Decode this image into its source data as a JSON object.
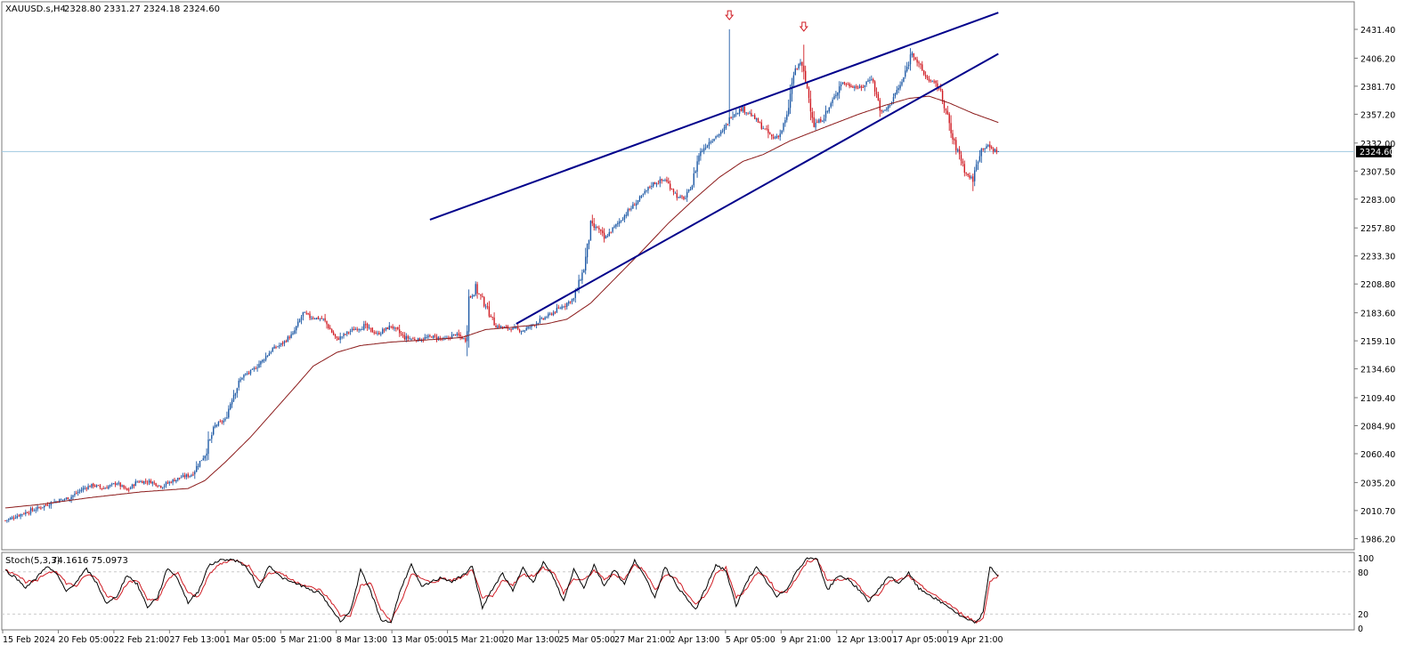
{
  "header": {
    "symbol": "XAUUSD.s,H4",
    "ohlc": "2328.80 2331.27 2324.18 2324.60"
  },
  "price_tag": "2324.60",
  "stoch_header": {
    "name": "Stoch(5,3,3)",
    "values": "74.1616 75.0973"
  },
  "colors": {
    "bull_candle": "#1f5aa6",
    "bear_candle": "#d01c24",
    "moving_average": "#8b1a1a",
    "trendlines": "#00008b",
    "stoch_main": "#000000",
    "stoch_signal": "#d01c24",
    "bid_line": "#9fc8e0",
    "arrows": "#d01c24",
    "grid": "#c8c8c8"
  },
  "chart_data": {
    "type": "candlestick",
    "timeframe": "H4",
    "x_tick_labels": [
      "15 Feb 2024",
      "20 Feb 05:00",
      "22 Feb 21:00",
      "27 Feb 13:00",
      "1 Mar 05:00",
      "5 Mar 21:00",
      "8 Mar 13:00",
      "13 Mar 05:00",
      "15 Mar 21:00",
      "20 Mar 13:00",
      "25 Mar 05:00",
      "27 Mar 21:00",
      "2 Apr 13:00",
      "5 Apr 05:00",
      "9 Apr 21:00",
      "12 Apr 13:00",
      "17 Apr 05:00",
      "19 Apr 21:00"
    ],
    "y_tick_labels": [
      "2431.40",
      "2406.20",
      "2381.70",
      "2357.20",
      "2332.00",
      "2307.50",
      "2283.00",
      "2257.80",
      "2233.30",
      "2208.80",
      "2183.60",
      "2159.10",
      "2134.60",
      "2109.40",
      "2084.90",
      "2060.40",
      "2035.20",
      "2010.70",
      "1986.20"
    ],
    "ylim": [
      1984,
      2446
    ],
    "close_path": [
      [
        0,
        2002
      ],
      [
        10,
        2008
      ],
      [
        18,
        2012
      ],
      [
        28,
        2018
      ],
      [
        38,
        2022
      ],
      [
        46,
        2030
      ],
      [
        52,
        2033
      ],
      [
        58,
        2030
      ],
      [
        66,
        2035
      ],
      [
        72,
        2028
      ],
      [
        78,
        2036
      ],
      [
        86,
        2036
      ],
      [
        92,
        2032
      ],
      [
        98,
        2036
      ],
      [
        104,
        2040
      ],
      [
        110,
        2042
      ],
      [
        118,
        2060
      ],
      [
        124,
        2085
      ],
      [
        130,
        2090
      ],
      [
        134,
        2110
      ],
      [
        140,
        2128
      ],
      [
        146,
        2133
      ],
      [
        152,
        2142
      ],
      [
        158,
        2152
      ],
      [
        164,
        2157
      ],
      [
        170,
        2165
      ],
      [
        176,
        2183
      ],
      [
        180,
        2180
      ],
      [
        188,
        2178
      ],
      [
        196,
        2160
      ],
      [
        204,
        2168
      ],
      [
        212,
        2172
      ],
      [
        220,
        2165
      ],
      [
        228,
        2172
      ],
      [
        236,
        2162
      ],
      [
        244,
        2160
      ],
      [
        252,
        2163
      ],
      [
        260,
        2160
      ],
      [
        266,
        2165
      ],
      [
        272,
        2160
      ],
      [
        274,
        2195
      ],
      [
        278,
        2205
      ],
      [
        284,
        2190
      ],
      [
        290,
        2172
      ],
      [
        298,
        2170
      ],
      [
        306,
        2168
      ],
      [
        314,
        2175
      ],
      [
        322,
        2182
      ],
      [
        330,
        2190
      ],
      [
        336,
        2196
      ],
      [
        342,
        2222
      ],
      [
        346,
        2258
      ],
      [
        350,
        2258
      ],
      [
        354,
        2248
      ],
      [
        362,
        2262
      ],
      [
        368,
        2272
      ],
      [
        376,
        2285
      ],
      [
        382,
        2296
      ],
      [
        390,
        2300
      ],
      [
        398,
        2284
      ],
      [
        402,
        2284
      ],
      [
        406,
        2296
      ],
      [
        410,
        2322
      ],
      [
        414,
        2330
      ],
      [
        418,
        2336
      ],
      [
        424,
        2342
      ],
      [
        430,
        2358
      ],
      [
        436,
        2362
      ],
      [
        440,
        2358
      ],
      [
        444,
        2352
      ],
      [
        450,
        2342
      ],
      [
        454,
        2336
      ],
      [
        458,
        2340
      ],
      [
        462,
        2355
      ],
      [
        466,
        2392
      ],
      [
        470,
        2403
      ],
      [
        474,
        2380
      ],
      [
        478,
        2348
      ],
      [
        482,
        2352
      ],
      [
        486,
        2360
      ],
      [
        490,
        2372
      ],
      [
        494,
        2385
      ],
      [
        500,
        2382
      ],
      [
        506,
        2380
      ],
      [
        512,
        2390
      ],
      [
        518,
        2358
      ],
      [
        522,
        2364
      ],
      [
        526,
        2375
      ],
      [
        530,
        2385
      ],
      [
        536,
        2412
      ],
      [
        540,
        2400
      ],
      [
        544,
        2390
      ],
      [
        548,
        2385
      ],
      [
        552,
        2380
      ],
      [
        556,
        2360
      ],
      [
        560,
        2335
      ],
      [
        564,
        2322
      ],
      [
        568,
        2305
      ],
      [
        572,
        2300
      ],
      [
        576,
        2325
      ],
      [
        580,
        2330
      ],
      [
        584,
        2326
      ],
      [
        587,
        2325
      ]
    ],
    "ma_path": [
      [
        0,
        2013
      ],
      [
        20,
        2016
      ],
      [
        50,
        2022
      ],
      [
        80,
        2027
      ],
      [
        108,
        2030
      ],
      [
        118,
        2037
      ],
      [
        130,
        2053
      ],
      [
        145,
        2075
      ],
      [
        160,
        2100
      ],
      [
        172,
        2120
      ],
      [
        182,
        2137
      ],
      [
        196,
        2149
      ],
      [
        210,
        2155
      ],
      [
        228,
        2158
      ],
      [
        250,
        2160
      ],
      [
        270,
        2162
      ],
      [
        284,
        2169
      ],
      [
        300,
        2171
      ],
      [
        320,
        2174
      ],
      [
        332,
        2178
      ],
      [
        346,
        2192
      ],
      [
        360,
        2213
      ],
      [
        376,
        2237
      ],
      [
        392,
        2262
      ],
      [
        408,
        2284
      ],
      [
        422,
        2302
      ],
      [
        436,
        2316
      ],
      [
        448,
        2322
      ],
      [
        464,
        2334
      ],
      [
        476,
        2341
      ],
      [
        490,
        2349
      ],
      [
        504,
        2357
      ],
      [
        520,
        2365
      ],
      [
        534,
        2371
      ],
      [
        546,
        2373
      ],
      [
        558,
        2367
      ],
      [
        572,
        2358
      ],
      [
        587,
        2350
      ]
    ],
    "trendlines": [
      {
        "from": [
          251,
          2265
        ],
        "to": [
          587,
          2446
        ]
      },
      {
        "from": [
          302,
          2174
        ],
        "to": [
          587,
          2410
        ]
      }
    ],
    "arrows": [
      {
        "x": 428,
        "price": 2443
      },
      {
        "x": 472,
        "price": 2433
      }
    ],
    "current_price": 2324.6
  },
  "stoch_data": {
    "y_tick_labels": [
      "100",
      "80",
      "20",
      "0"
    ],
    "levels": [
      80,
      20
    ],
    "main": [
      [
        0,
        82
      ],
      [
        6,
        72
      ],
      [
        12,
        58
      ],
      [
        18,
        70
      ],
      [
        24,
        88
      ],
      [
        30,
        78
      ],
      [
        36,
        52
      ],
      [
        42,
        66
      ],
      [
        48,
        84
      ],
      [
        54,
        64
      ],
      [
        60,
        34
      ],
      [
        66,
        46
      ],
      [
        72,
        76
      ],
      [
        78,
        62
      ],
      [
        84,
        30
      ],
      [
        90,
        44
      ],
      [
        96,
        86
      ],
      [
        102,
        70
      ],
      [
        108,
        36
      ],
      [
        114,
        52
      ],
      [
        120,
        88
      ],
      [
        126,
        96
      ],
      [
        132,
        98
      ],
      [
        138,
        95
      ],
      [
        144,
        82
      ],
      [
        150,
        56
      ],
      [
        156,
        90
      ],
      [
        162,
        74
      ],
      [
        168,
        66
      ],
      [
        174,
        62
      ],
      [
        180,
        54
      ],
      [
        186,
        50
      ],
      [
        192,
        30
      ],
      [
        198,
        10
      ],
      [
        204,
        24
      ],
      [
        210,
        82
      ],
      [
        216,
        52
      ],
      [
        222,
        12
      ],
      [
        228,
        8
      ],
      [
        234,
        58
      ],
      [
        240,
        90
      ],
      [
        246,
        58
      ],
      [
        252,
        66
      ],
      [
        258,
        72
      ],
      [
        264,
        66
      ],
      [
        270,
        74
      ],
      [
        276,
        88
      ],
      [
        282,
        28
      ],
      [
        288,
        56
      ],
      [
        294,
        78
      ],
      [
        300,
        52
      ],
      [
        306,
        88
      ],
      [
        312,
        64
      ],
      [
        318,
        94
      ],
      [
        324,
        72
      ],
      [
        330,
        38
      ],
      [
        336,
        84
      ],
      [
        342,
        58
      ],
      [
        348,
        90
      ],
      [
        354,
        60
      ],
      [
        360,
        84
      ],
      [
        366,
        62
      ],
      [
        372,
        98
      ],
      [
        378,
        72
      ],
      [
        384,
        44
      ],
      [
        390,
        88
      ],
      [
        396,
        64
      ],
      [
        402,
        44
      ],
      [
        408,
        26
      ],
      [
        414,
        56
      ],
      [
        420,
        90
      ],
      [
        426,
        82
      ],
      [
        432,
        30
      ],
      [
        438,
        66
      ],
      [
        444,
        86
      ],
      [
        450,
        66
      ],
      [
        456,
        44
      ],
      [
        462,
        56
      ],
      [
        468,
        82
      ],
      [
        474,
        100
      ],
      [
        480,
        98
      ],
      [
        486,
        54
      ],
      [
        492,
        74
      ],
      [
        498,
        70
      ],
      [
        504,
        56
      ],
      [
        510,
        38
      ],
      [
        516,
        54
      ],
      [
        522,
        74
      ],
      [
        528,
        64
      ],
      [
        534,
        78
      ],
      [
        540,
        56
      ],
      [
        546,
        48
      ],
      [
        552,
        38
      ],
      [
        558,
        30
      ],
      [
        564,
        18
      ],
      [
        570,
        10
      ],
      [
        574,
        8
      ],
      [
        578,
        22
      ],
      [
        582,
        88
      ],
      [
        587,
        74
      ]
    ],
    "signal": [
      [
        0,
        82
      ],
      [
        6,
        78
      ],
      [
        12,
        66
      ],
      [
        18,
        66
      ],
      [
        24,
        78
      ],
      [
        30,
        82
      ],
      [
        36,
        64
      ],
      [
        42,
        60
      ],
      [
        48,
        76
      ],
      [
        54,
        72
      ],
      [
        60,
        46
      ],
      [
        66,
        42
      ],
      [
        72,
        64
      ],
      [
        78,
        68
      ],
      [
        84,
        42
      ],
      [
        90,
        38
      ],
      [
        96,
        70
      ],
      [
        102,
        78
      ],
      [
        108,
        50
      ],
      [
        114,
        44
      ],
      [
        120,
        74
      ],
      [
        126,
        90
      ],
      [
        132,
        96
      ],
      [
        138,
        96
      ],
      [
        144,
        88
      ],
      [
        150,
        66
      ],
      [
        156,
        78
      ],
      [
        162,
        80
      ],
      [
        168,
        70
      ],
      [
        174,
        64
      ],
      [
        180,
        58
      ],
      [
        186,
        54
      ],
      [
        192,
        40
      ],
      [
        198,
        18
      ],
      [
        204,
        18
      ],
      [
        210,
        60
      ],
      [
        216,
        64
      ],
      [
        222,
        26
      ],
      [
        228,
        10
      ],
      [
        234,
        38
      ],
      [
        240,
        76
      ],
      [
        246,
        72
      ],
      [
        252,
        64
      ],
      [
        258,
        70
      ],
      [
        264,
        68
      ],
      [
        270,
        72
      ],
      [
        276,
        82
      ],
      [
        282,
        44
      ],
      [
        288,
        44
      ],
      [
        294,
        68
      ],
      [
        300,
        62
      ],
      [
        306,
        76
      ],
      [
        312,
        74
      ],
      [
        318,
        86
      ],
      [
        324,
        80
      ],
      [
        330,
        50
      ],
      [
        336,
        70
      ],
      [
        342,
        68
      ],
      [
        348,
        82
      ],
      [
        354,
        70
      ],
      [
        360,
        76
      ],
      [
        366,
        70
      ],
      [
        372,
        90
      ],
      [
        378,
        82
      ],
      [
        384,
        54
      ],
      [
        390,
        76
      ],
      [
        396,
        72
      ],
      [
        402,
        52
      ],
      [
        408,
        34
      ],
      [
        414,
        46
      ],
      [
        420,
        78
      ],
      [
        426,
        86
      ],
      [
        432,
        44
      ],
      [
        438,
        54
      ],
      [
        444,
        78
      ],
      [
        450,
        74
      ],
      [
        456,
        52
      ],
      [
        462,
        52
      ],
      [
        468,
        72
      ],
      [
        474,
        94
      ],
      [
        480,
        98
      ],
      [
        486,
        68
      ],
      [
        492,
        68
      ],
      [
        498,
        72
      ],
      [
        504,
        62
      ],
      [
        510,
        44
      ],
      [
        516,
        48
      ],
      [
        522,
        66
      ],
      [
        528,
        68
      ],
      [
        534,
        74
      ],
      [
        540,
        62
      ],
      [
        546,
        52
      ],
      [
        552,
        42
      ],
      [
        558,
        34
      ],
      [
        564,
        22
      ],
      [
        570,
        14
      ],
      [
        574,
        8
      ],
      [
        578,
        14
      ],
      [
        582,
        66
      ],
      [
        587,
        75
      ]
    ]
  }
}
